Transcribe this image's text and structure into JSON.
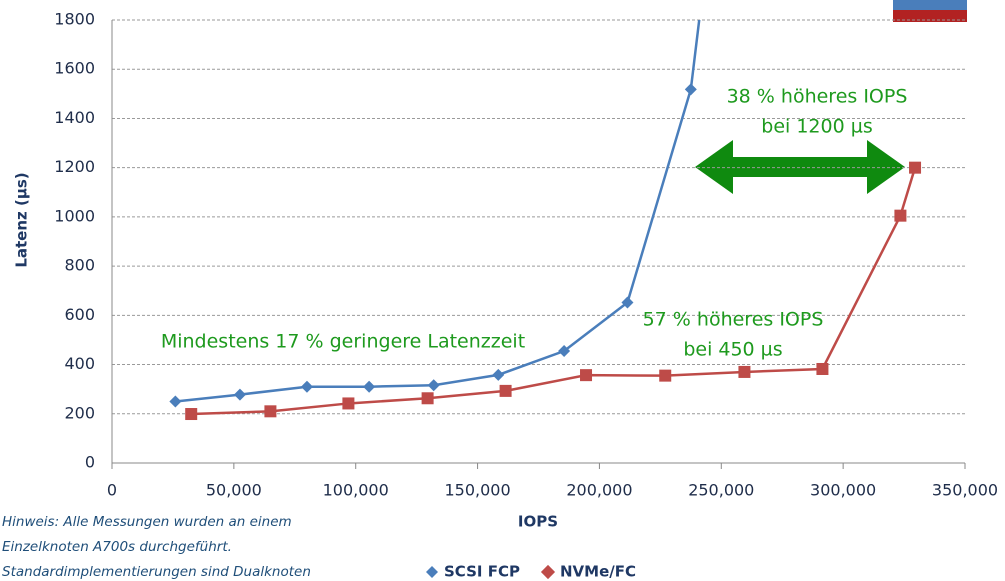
{
  "chart_data": {
    "type": "line",
    "y_label": "Latenz (µs)",
    "x_label": "IOPS",
    "xlim": [
      0,
      350000
    ],
    "xticks": [
      0,
      {
        "value": 50000,
        "label": "50,000"
      },
      {
        "value": 100000,
        "label": "100,000"
      },
      {
        "value": 150000,
        "label": "150,000"
      },
      {
        "value": 200000,
        "label": "200,000"
      },
      {
        "value": 250000,
        "label": "250,000"
      },
      {
        "value": 300000,
        "label": "300,000"
      },
      {
        "value": 350000,
        "label": "350,000"
      }
    ],
    "ylim": [
      0,
      1800
    ],
    "yticks": [
      0,
      200,
      400,
      600,
      800,
      1000,
      1200,
      1400,
      1600,
      1800
    ],
    "grid": true,
    "series": [
      {
        "name": "SCSI FCP",
        "color": "#4a7ebb",
        "marker": "diamond",
        "x": [
          26000,
          52500,
          80000,
          105500,
          132000,
          158500,
          185500,
          211500,
          237500,
          244000
        ],
        "values": [
          250,
          278,
          310,
          310,
          316,
          358,
          455,
          652,
          1518,
          2050
        ]
      },
      {
        "name": "NVMe/FC",
        "color": "#be4b48",
        "marker": "square",
        "x": [
          32500,
          65000,
          97000,
          129500,
          161500,
          194500,
          227000,
          259500,
          291500,
          323500,
          329500
        ],
        "values": [
          199,
          210,
          242,
          263,
          293,
          357,
          355,
          370,
          382,
          1005,
          1200
        ]
      }
    ],
    "annotations": [
      {
        "lines": [
          "38 % höheres IOPS",
          "bei 1200 µs"
        ]
      },
      {
        "lines": [
          "57 % höheres IOPS",
          "bei 450 µs"
        ]
      },
      {
        "lines": [
          "Mindestens 17 % geringere Latenzzeit"
        ]
      }
    ],
    "note": [
      "Hinweis: Alle Messungen wurden an einem",
      "Einzelknoten A700s durchgeführt.",
      "Standardimplementierungen sind Dualknoten"
    ]
  }
}
